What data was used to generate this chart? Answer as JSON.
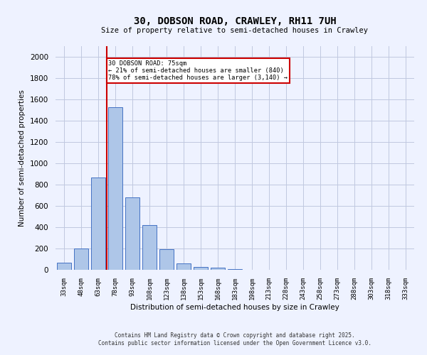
{
  "title1": "30, DOBSON ROAD, CRAWLEY, RH11 7UH",
  "title2": "Size of property relative to semi-detached houses in Crawley",
  "xlabel": "Distribution of semi-detached houses by size in Crawley",
  "ylabel": "Number of semi-detached properties",
  "footer1": "Contains HM Land Registry data © Crown copyright and database right 2025.",
  "footer2": "Contains public sector information licensed under the Open Government Licence v3.0.",
  "annotation_line1": "30 DOBSON ROAD: 75sqm",
  "annotation_line2": "← 21% of semi-detached houses are smaller (840)",
  "annotation_line3": "78% of semi-detached houses are larger (3,140) →",
  "bar_labels": [
    "33sqm",
    "48sqm",
    "63sqm",
    "78sqm",
    "93sqm",
    "108sqm",
    "123sqm",
    "138sqm",
    "153sqm",
    "168sqm",
    "183sqm",
    "198sqm",
    "213sqm",
    "228sqm",
    "243sqm",
    "258sqm",
    "273sqm",
    "288sqm",
    "303sqm",
    "318sqm",
    "333sqm"
  ],
  "bar_values": [
    70,
    200,
    870,
    1530,
    680,
    420,
    195,
    60,
    25,
    18,
    10,
    0,
    0,
    0,
    0,
    0,
    0,
    0,
    0,
    0,
    0
  ],
  "bar_color": "#aec6e8",
  "bar_edge_color": "#4472c4",
  "vline_color": "#cc0000",
  "annotation_box_color": "#cc0000",
  "background_color": "#eef2ff",
  "grid_color": "#c0c8e0",
  "ylim": [
    0,
    2100
  ],
  "yticks": [
    0,
    200,
    400,
    600,
    800,
    1000,
    1200,
    1400,
    1600,
    1800,
    2000
  ],
  "vline_x": 2.5
}
